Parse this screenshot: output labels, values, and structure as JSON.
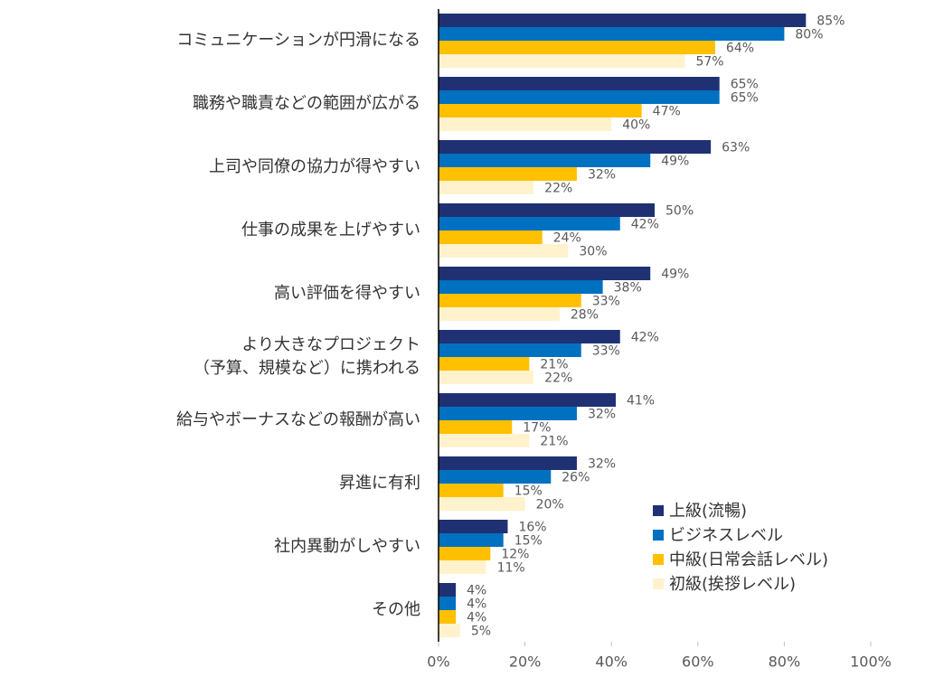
{
  "chart_data": {
    "type": "hbar",
    "categories": [
      "コミュニケーションが円滑になる",
      "職務や職責などの範囲が広がる",
      "上司や同僚の協力が得やすい",
      "仕事の成果を上げやすい",
      "高い評価を得やすい",
      "より大きなプロジェクト\n（予算、規模など）に携われる",
      "給与やボーナスなどの報酬が高い",
      "昇進に有利",
      "社内異動がしやすい",
      "その他"
    ],
    "series": [
      {
        "name": "上級(流暢)",
        "color": "#1f3173",
        "values": [
          85,
          65,
          63,
          50,
          49,
          42,
          41,
          32,
          16,
          4
        ],
        "value_labels": [
          "85%",
          "65%",
          "63%",
          "50%",
          "49%",
          "42%",
          "41%",
          "32%",
          "16%",
          "4%"
        ]
      },
      {
        "name": "ビジネスレベル",
        "color": "#0070c0",
        "values": [
          80,
          65,
          49,
          42,
          38,
          33,
          32,
          26,
          15,
          4
        ],
        "value_labels": [
          "80%",
          "65%",
          "49%",
          "42%",
          "38%",
          "33%",
          "32%",
          "26%",
          "15%",
          "4%"
        ]
      },
      {
        "name": "中級(日常会話レベル)",
        "color": "#ffc000",
        "values": [
          64,
          47,
          32,
          24,
          33,
          21,
          17,
          15,
          12,
          4
        ],
        "value_labels": [
          "64%",
          "47%",
          "32%",
          "24%",
          "33%",
          "21%",
          "17%",
          "15%",
          "12%",
          "4%"
        ]
      },
      {
        "name": "初級(挨拶レベル)",
        "color": "#fff2cc",
        "values": [
          57,
          40,
          22,
          30,
          28,
          22,
          21,
          20,
          11,
          5
        ],
        "value_labels": [
          "57%",
          "40%",
          "22%",
          "30%",
          "28%",
          "22%",
          "21%",
          "20%",
          "11%",
          "5%"
        ]
      }
    ],
    "xlim": [
      0,
      100
    ],
    "xticks": [
      {
        "value": 0,
        "label": "0%"
      },
      {
        "value": 20,
        "label": "20%"
      },
      {
        "value": 40,
        "label": "40%"
      },
      {
        "value": 60,
        "label": "60%"
      },
      {
        "value": 80,
        "label": "80%"
      },
      {
        "value": 100,
        "label": "100%"
      }
    ]
  }
}
